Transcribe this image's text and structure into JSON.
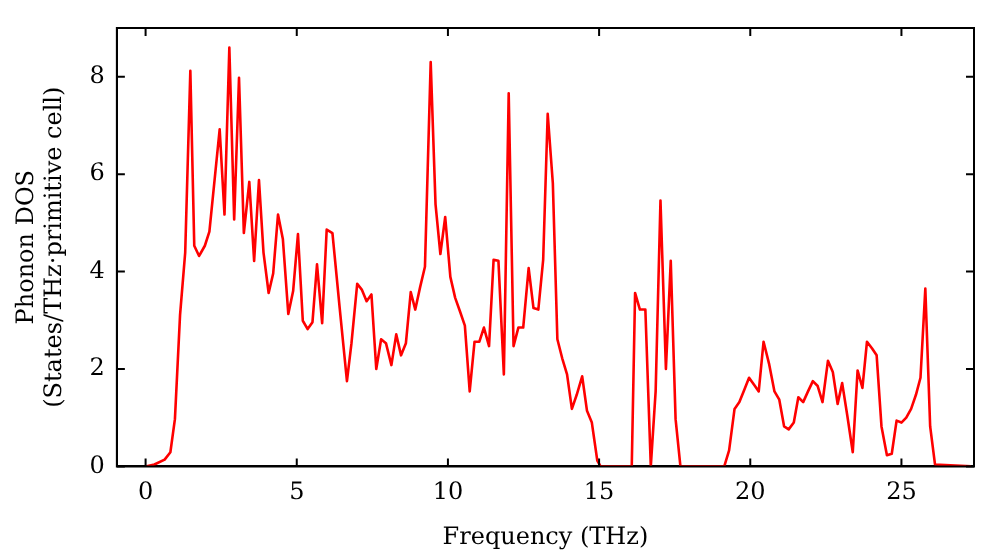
{
  "chart_data": {
    "type": "line",
    "xlabel": "Frequency (THz)",
    "ylabel": "Phonon DOS\n(States/THz·primitive cell)",
    "xlim": [
      -0.95,
      27.4
    ],
    "ylim": [
      0,
      9
    ],
    "xticks": [
      0,
      5,
      10,
      15,
      20,
      25
    ],
    "yticks": [
      0,
      2,
      4,
      6,
      8
    ],
    "grid": false,
    "legend": false,
    "marker": "none",
    "line_style": "solid",
    "series": [
      {
        "color": "#ff0000",
        "x": [
          0,
          0.29,
          0.63,
          0.82,
          0.97,
          1.14,
          1.31,
          1.48,
          1.61,
          1.77,
          1.96,
          2.11,
          2.45,
          2.61,
          2.77,
          2.93,
          3.09,
          3.25,
          3.43,
          3.59,
          3.75,
          3.9,
          4.07,
          4.22,
          4.38,
          4.54,
          4.72,
          4.88,
          5.04,
          5.2,
          5.36,
          5.52,
          5.67,
          5.84,
          5.99,
          6.18,
          6.42,
          6.66,
          6.81,
          7.0,
          7.15,
          7.31,
          7.47,
          7.63,
          7.79,
          7.95,
          8.13,
          8.29,
          8.45,
          8.61,
          8.77,
          8.92,
          9.08,
          9.24,
          9.43,
          9.59,
          9.75,
          9.91,
          10.08,
          10.24,
          10.4,
          10.56,
          10.72,
          10.88,
          11.04,
          11.19,
          11.36,
          11.51,
          11.67,
          11.85,
          12.01,
          12.17,
          12.33,
          12.49,
          12.67,
          12.83,
          12.99,
          13.15,
          13.3,
          13.47,
          13.62,
          13.78,
          13.94,
          14.1,
          14.26,
          14.44,
          14.6,
          14.76,
          14.94,
          15.05,
          16.08,
          16.19,
          16.35,
          16.53,
          16.71,
          16.87,
          17.03,
          17.21,
          17.37,
          17.53,
          17.69,
          19.14,
          19.3,
          19.48,
          19.64,
          19.8,
          19.96,
          20.12,
          20.28,
          20.44,
          20.62,
          20.8,
          20.96,
          21.12,
          21.27,
          21.44,
          21.59,
          21.75,
          21.91,
          22.07,
          22.23,
          22.39,
          22.57,
          22.73,
          22.89,
          23.04,
          23.21,
          23.39,
          23.55,
          23.71,
          23.86,
          24.03,
          24.18,
          24.34,
          24.52,
          24.68,
          24.84,
          25.0,
          25.16,
          25.32,
          25.48,
          25.63,
          25.79,
          25.95,
          26.11,
          27.3
        ],
        "values": [
          0,
          0.04,
          0.14,
          0.29,
          0.97,
          3.11,
          4.39,
          8.12,
          4.53,
          4.32,
          4.53,
          4.82,
          6.92,
          5.17,
          8.6,
          5.07,
          7.98,
          4.79,
          5.84,
          4.22,
          5.88,
          4.39,
          3.56,
          3.96,
          5.17,
          4.67,
          3.13,
          3.6,
          4.77,
          2.99,
          2.82,
          2.96,
          4.15,
          2.94,
          4.86,
          4.79,
          3.25,
          1.75,
          2.53,
          3.75,
          3.63,
          3.39,
          3.53,
          2.0,
          2.61,
          2.53,
          2.08,
          2.71,
          2.28,
          2.53,
          3.58,
          3.22,
          3.68,
          4.1,
          8.3,
          5.38,
          4.36,
          5.12,
          3.89,
          3.46,
          3.18,
          2.89,
          1.54,
          2.56,
          2.56,
          2.85,
          2.47,
          4.24,
          4.22,
          1.89,
          7.66,
          2.47,
          2.85,
          2.85,
          4.07,
          3.25,
          3.22,
          4.24,
          7.24,
          5.81,
          2.61,
          2.22,
          1.89,
          1.18,
          1.47,
          1.85,
          1.14,
          0.9,
          0.12,
          0,
          0,
          3.56,
          3.22,
          3.22,
          0,
          1.54,
          5.46,
          2.0,
          4.22,
          0.97,
          0,
          0,
          0.33,
          1.18,
          1.32,
          1.57,
          1.82,
          1.68,
          1.54,
          2.56,
          2.11,
          1.54,
          1.37,
          0.82,
          0.76,
          0.9,
          1.42,
          1.32,
          1.54,
          1.75,
          1.65,
          1.32,
          2.17,
          1.94,
          1.28,
          1.71,
          1.04,
          0.29,
          1.97,
          1.61,
          2.56,
          2.42,
          2.28,
          0.82,
          0.23,
          0.26,
          0.94,
          0.9,
          1.0,
          1.18,
          1.47,
          1.82,
          3.65,
          0.82,
          0.04,
          0
        ]
      }
    ]
  }
}
